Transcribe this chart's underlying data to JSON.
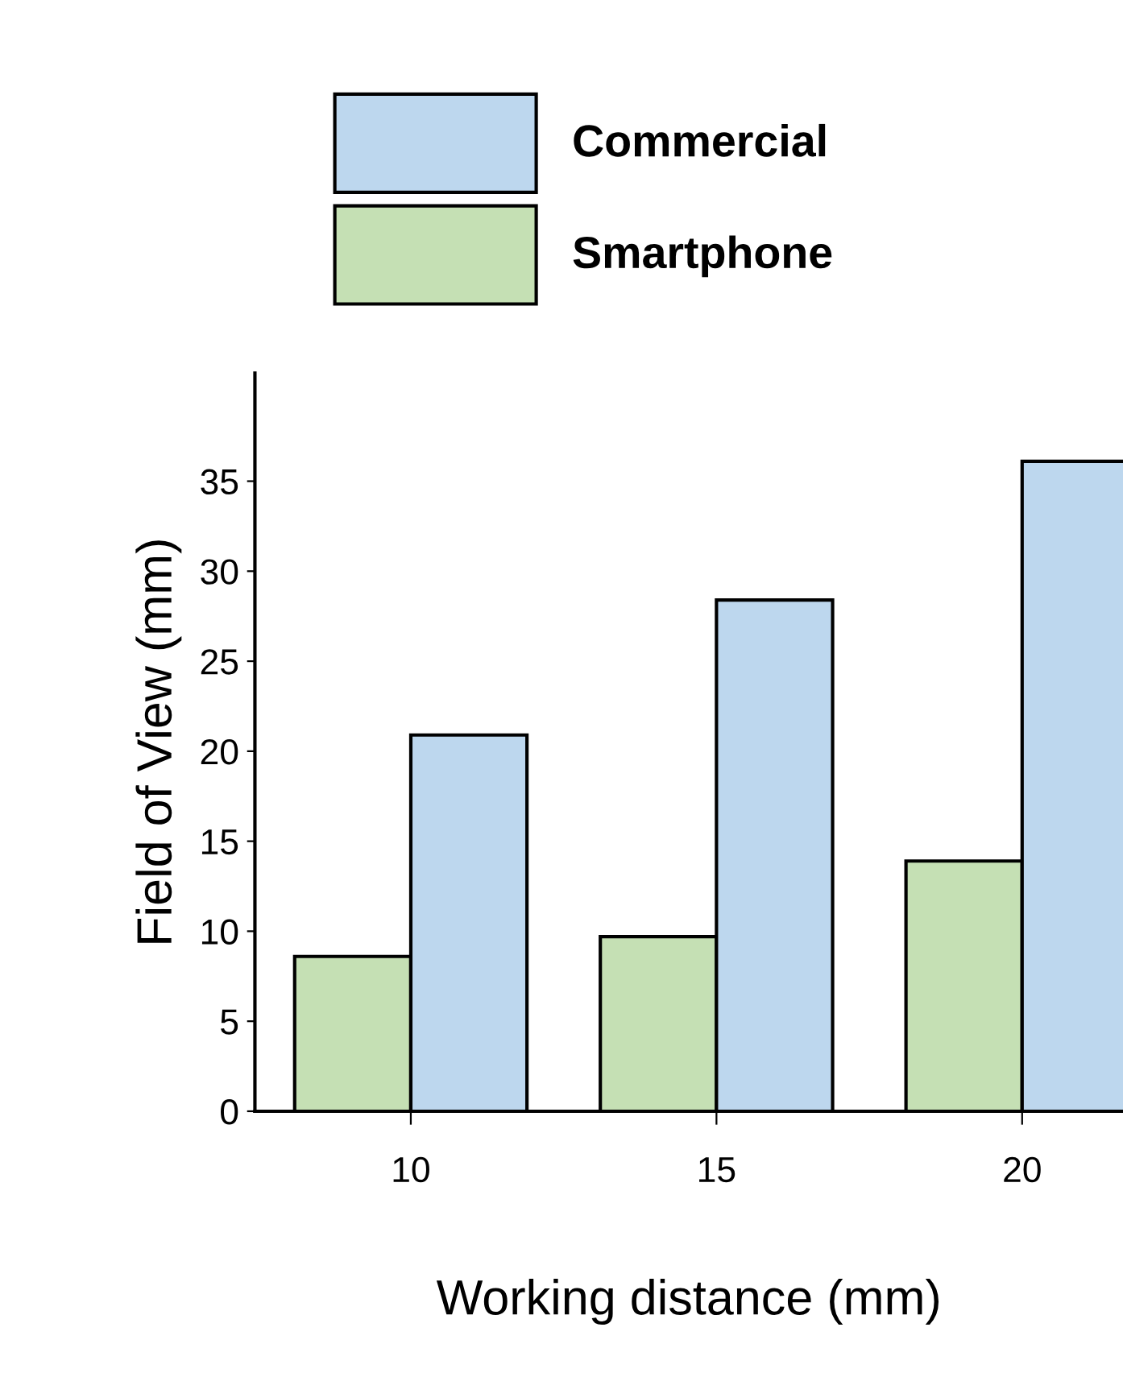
{
  "chart_data": {
    "type": "bar",
    "xlabel": "Working distance (mm)",
    "ylabel": "Field of View (mm)",
    "categories": [
      "10",
      "15",
      "20"
    ],
    "series": [
      {
        "name": "Smartphone",
        "color": "#c5e0b4",
        "values": [
          8.6,
          9.7,
          13.9
        ]
      },
      {
        "name": "Commercial",
        "color": "#bdd7ee",
        "values": [
          20.9,
          28.4,
          36.1
        ]
      }
    ],
    "ylim": [
      0,
      41
    ],
    "yticks": [
      0,
      5,
      10,
      15,
      20,
      25,
      30,
      35
    ],
    "grid": false,
    "legend": "top"
  }
}
